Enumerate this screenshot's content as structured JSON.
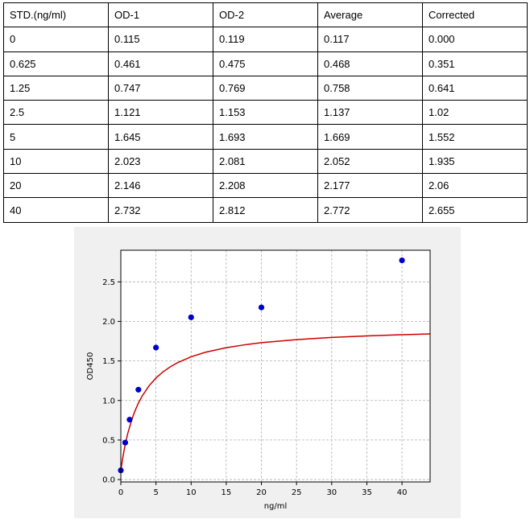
{
  "table": {
    "headers": [
      "STD.(ng/ml)",
      "OD-1",
      "OD-2",
      "Average",
      "Corrected"
    ],
    "rows": [
      [
        "0",
        "0.115",
        "0.119",
        "0.117",
        "0.000"
      ],
      [
        "0.625",
        "0.461",
        "0.475",
        "0.468",
        "0.351"
      ],
      [
        "1.25",
        "0.747",
        "0.769",
        "0.758",
        "0.641"
      ],
      [
        "2.5",
        "1.121",
        "1.153",
        "1.137",
        "1.02"
      ],
      [
        "5",
        "1.645",
        "1.693",
        "1.669",
        "1.552"
      ],
      [
        "10",
        "2.023",
        "2.081",
        "2.052",
        "1.935"
      ],
      [
        "20",
        "2.146",
        "2.208",
        "2.177",
        "2.06"
      ],
      [
        "40",
        "2.732",
        "2.812",
        "2.772",
        "2.655"
      ]
    ]
  },
  "chart_data": {
    "type": "scatter",
    "title": "",
    "xlabel": "ng/ml",
    "ylabel": "OD450",
    "xlim": [
      0,
      44
    ],
    "ylim": [
      -0.03,
      2.9
    ],
    "xticks": [
      0,
      5,
      10,
      15,
      20,
      25,
      30,
      35,
      40
    ],
    "yticks": [
      0.0,
      0.5,
      1.0,
      1.5,
      2.0,
      2.5
    ],
    "ytick_labels": [
      "0.0",
      "0.5",
      "1.0",
      "1.5",
      "2.0",
      "2.5"
    ],
    "grid": true,
    "series": [
      {
        "kind": "points",
        "color": "#0000cc",
        "x": [
          0,
          0.625,
          1.25,
          2.5,
          5,
          10,
          20,
          40
        ],
        "y": [
          0.117,
          0.468,
          0.758,
          1.137,
          1.669,
          2.052,
          2.177,
          2.772
        ]
      },
      {
        "kind": "fit-curve",
        "color": "#cc0000",
        "x": [
          0,
          0.25,
          0.5,
          0.75,
          1,
          1.5,
          2,
          2.5,
          3,
          4,
          5,
          6,
          7,
          8,
          10,
          12,
          15,
          18,
          20,
          25,
          30,
          35,
          40,
          44
        ],
        "y": [
          0.117,
          0.263,
          0.387,
          0.494,
          0.587,
          0.742,
          0.866,
          0.967,
          1.051,
          1.184,
          1.284,
          1.362,
          1.424,
          1.475,
          1.553,
          1.609,
          1.668,
          1.709,
          1.731,
          1.77,
          1.797,
          1.817,
          1.832,
          1.842
        ]
      }
    ]
  }
}
